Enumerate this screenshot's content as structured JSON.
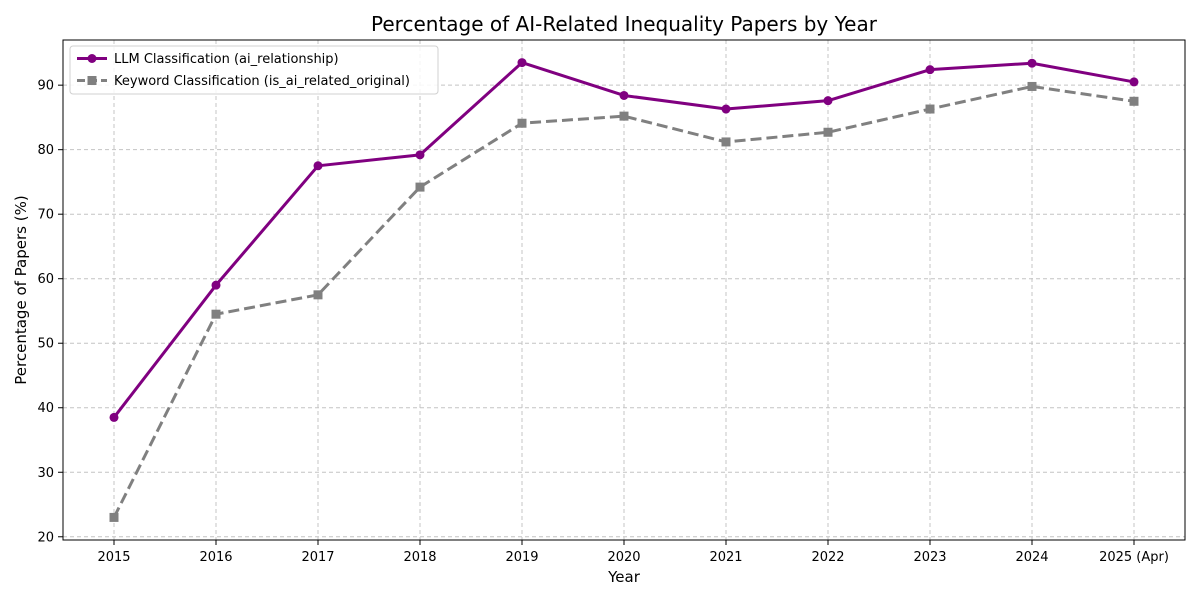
{
  "chart_data": {
    "type": "line",
    "title": "Percentage of AI-Related Inequality Papers by Year",
    "xlabel": "Year",
    "ylabel": "Percentage of Papers (%)",
    "categories": [
      "2015",
      "2016",
      "2017",
      "2018",
      "2019",
      "2020",
      "2021",
      "2022",
      "2023",
      "2024",
      "2025 (Apr)"
    ],
    "ylim": [
      19.5,
      97
    ],
    "yticks": [
      20,
      30,
      40,
      50,
      60,
      70,
      80,
      90
    ],
    "grid": true,
    "legend_position": "upper-left",
    "series": [
      {
        "name": "LLM Classification (ai_relationship)",
        "color": "#800080",
        "line_style": "solid",
        "marker": "circle",
        "values": [
          38.5,
          59.0,
          77.5,
          79.2,
          93.5,
          88.4,
          86.3,
          87.6,
          92.4,
          93.4,
          90.5
        ]
      },
      {
        "name": "Keyword Classification (is_ai_related_original)",
        "color": "#808080",
        "line_style": "dashed",
        "marker": "square",
        "values": [
          23.0,
          54.5,
          57.5,
          74.2,
          84.1,
          85.2,
          81.2,
          82.7,
          86.3,
          89.8,
          87.5
        ]
      }
    ]
  }
}
